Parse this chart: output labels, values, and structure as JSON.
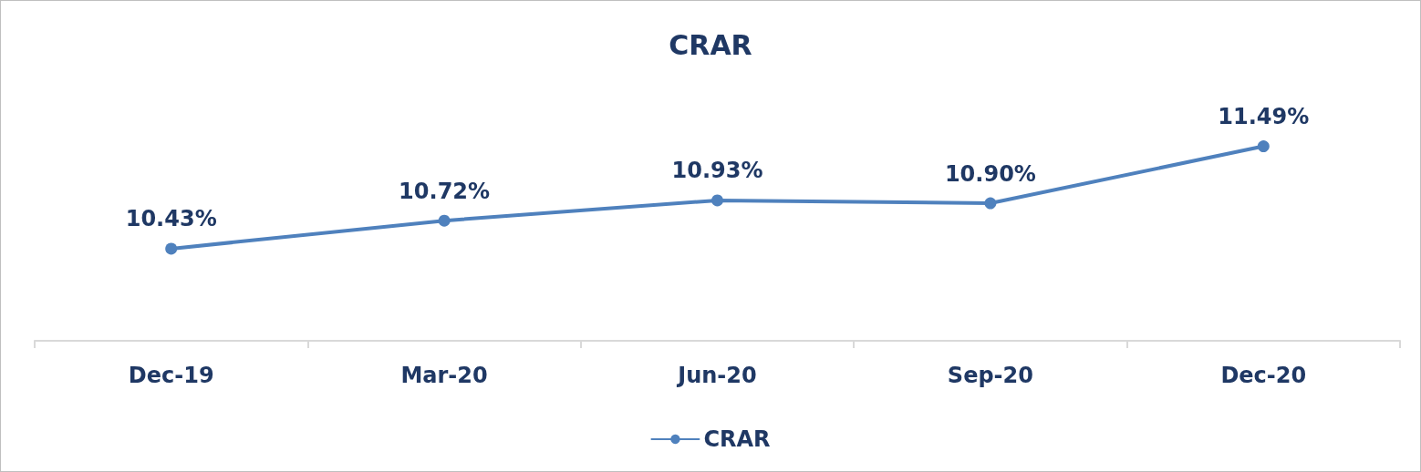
{
  "chart_data": {
    "type": "line",
    "title": "CRAR",
    "categories": [
      "Dec-19",
      "Mar-20",
      "Jun-20",
      "Sep-20",
      "Dec-20"
    ],
    "series": [
      {
        "name": "CRAR",
        "color": "#4f81bd",
        "values": [
          10.43,
          10.72,
          10.93,
          10.9,
          11.49
        ],
        "value_labels": [
          "10.43%",
          "10.72%",
          "10.93%",
          "10.90%",
          "11.49%"
        ]
      }
    ],
    "marker": "circle",
    "line_style": "solid",
    "grid": false,
    "legend": "bottom"
  }
}
